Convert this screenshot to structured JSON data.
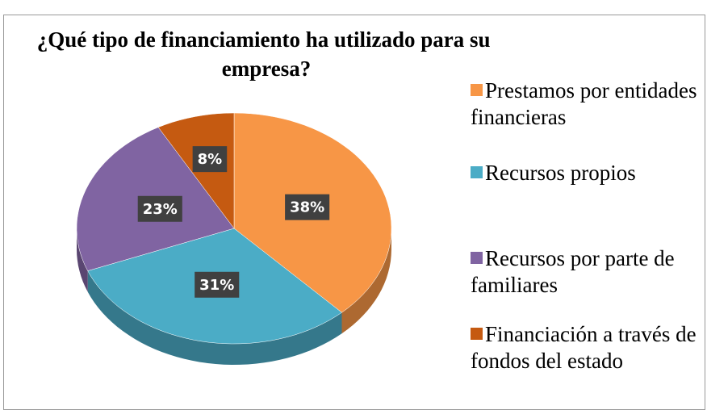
{
  "chart_data": {
    "type": "pie3d",
    "title": "¿Qué tipo de financiamiento ha utilizado para su empresa?",
    "categories": [
      "Prestamos por entidades financieras",
      "Recursos propios",
      "Recursos por parte de familiares",
      "Financiación a través de fondos del estado"
    ],
    "values": [
      38,
      31,
      23,
      8
    ],
    "value_labels": [
      "38%",
      "31%",
      "23%",
      "8%"
    ],
    "colors": [
      "#f79646",
      "#4bacc6",
      "#8064a2",
      "#c55a11"
    ],
    "legend": "right"
  }
}
